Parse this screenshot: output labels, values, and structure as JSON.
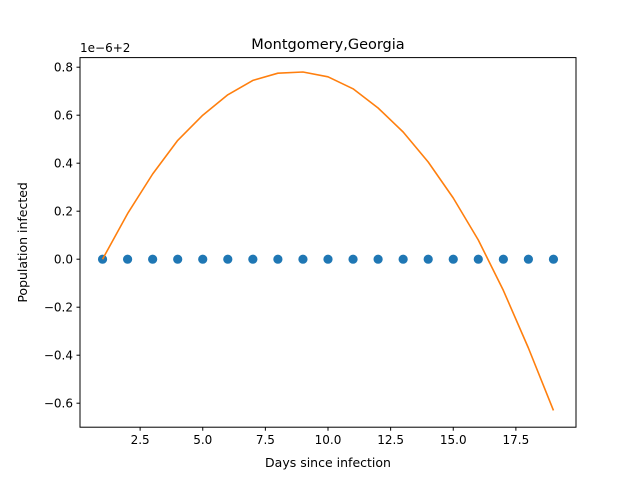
{
  "chart_data": {
    "type": "line",
    "title": "Montgomery,Georgia",
    "xlabel": "Days since infection",
    "ylabel": "Population infected",
    "offset_label": "1e−6+2",
    "xlim": [
      0.1,
      19.9
    ],
    "ylim": [
      -0.7,
      0.84
    ],
    "xticks": [
      2.5,
      5.0,
      7.5,
      10.0,
      12.5,
      15.0,
      17.5
    ],
    "xtick_labels": [
      "2.5",
      "5.0",
      "7.5",
      "10.0",
      "12.5",
      "15.0",
      "17.5"
    ],
    "yticks": [
      -0.6,
      -0.4,
      -0.2,
      0.0,
      0.2,
      0.4,
      0.6,
      0.8
    ],
    "ytick_labels": [
      "−0.6",
      "−0.4",
      "−0.2",
      "0.0",
      "0.2",
      "0.4",
      "0.6",
      "0.8"
    ],
    "grid": false,
    "series": [
      {
        "kind": "scatter",
        "color": "#1f77b4",
        "x": [
          1,
          2,
          3,
          4,
          5,
          6,
          7,
          8,
          9,
          10,
          11,
          12,
          13,
          14,
          15,
          16,
          17,
          18,
          19
        ],
        "y": [
          0,
          0,
          0,
          0,
          0,
          0,
          0,
          0,
          0,
          0,
          0,
          0,
          0,
          0,
          0,
          0,
          0,
          0,
          0
        ]
      },
      {
        "kind": "line",
        "color": "#ff7f0e",
        "x": [
          1,
          2,
          3,
          4,
          5,
          6,
          7,
          8,
          9,
          10,
          11,
          12,
          13,
          14,
          15,
          16,
          17,
          18,
          19
        ],
        "y": [
          0.0,
          0.19,
          0.355,
          0.495,
          0.6,
          0.685,
          0.745,
          0.775,
          0.78,
          0.76,
          0.71,
          0.63,
          0.53,
          0.405,
          0.255,
          0.08,
          -0.13,
          -0.37,
          -0.63
        ]
      }
    ]
  }
}
